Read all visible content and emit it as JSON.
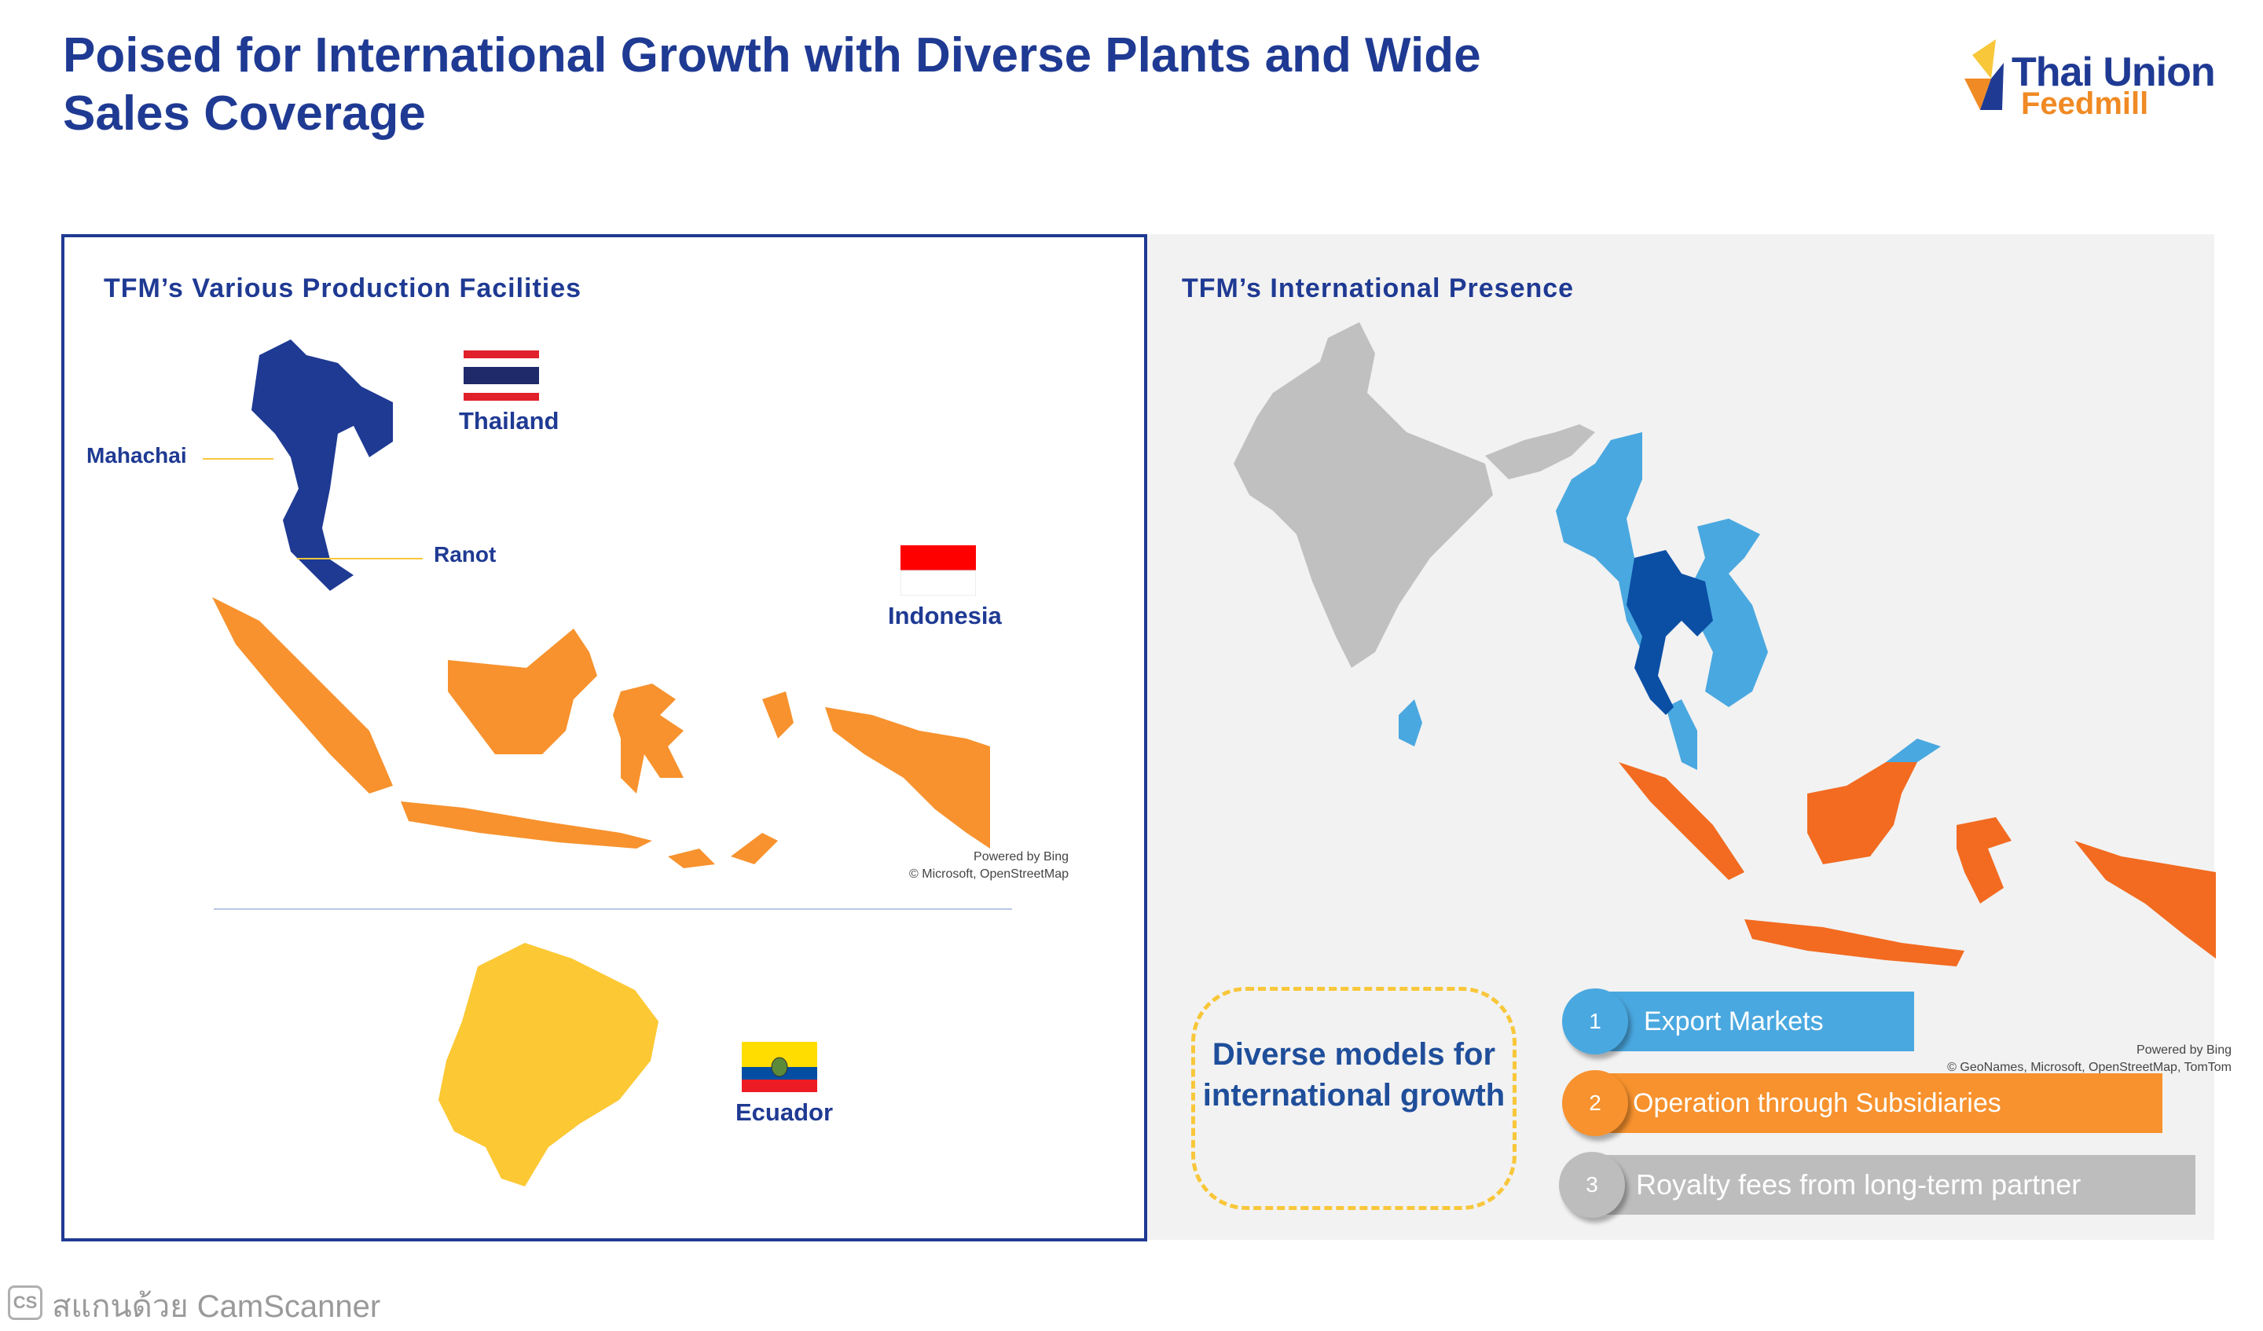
{
  "title": "Poised for International Growth with Diverse Plants and Wide Sales Coverage",
  "logo": {
    "line1": "Thai Union",
    "line2": "Feedmill"
  },
  "left_panel": {
    "title": "TFM’s Various Production Facilities",
    "labels": {
      "mahachai": "Mahachai",
      "ranot": "Ranot"
    },
    "countries": {
      "thailand": "Thailand",
      "indonesia": "Indonesia",
      "ecuador": "Ecuador"
    },
    "credit_line1": "Powered by Bing",
    "credit_line2": "© Microsoft, OpenStreetMap"
  },
  "right_panel": {
    "title": "TFM’s International Presence",
    "callout": "Diverse models for international growth",
    "credit_line1": "Powered by Bing",
    "credit_line2": "© GeoNames, Microsoft, OpenStreetMap, TomTom",
    "models": [
      {
        "number": "1",
        "label": "Export Markets",
        "color": "#4aa8e0"
      },
      {
        "number": "2",
        "label": "Operation through Subsidiaries",
        "color": "#f7922e"
      },
      {
        "number": "3",
        "label": "Royalty fees from long-term partner",
        "color": "#bdbdbd"
      }
    ]
  },
  "colors": {
    "title_blue": "#1f3a93",
    "thailand": "#1f3a93",
    "indonesia": "#f7922e",
    "ecuador": "#fcc833",
    "export_blue": "#4aa8e0",
    "subsidiary_orange": "#f26b21",
    "other_grey": "#bdbdbd"
  },
  "watermark": {
    "badge": "CS",
    "text": "สแกนด้วย CamScanner"
  }
}
